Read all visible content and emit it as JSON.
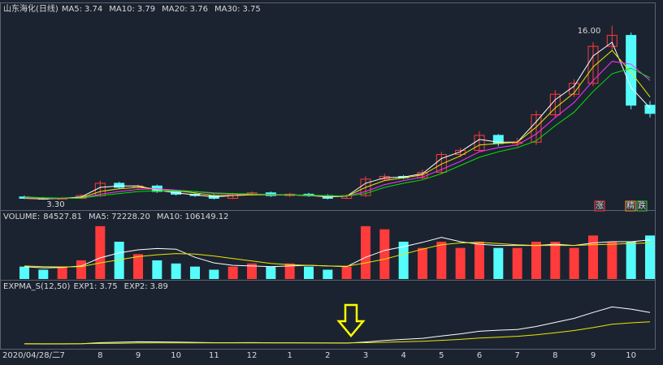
{
  "chart_data": [
    {
      "type": "candlestick",
      "title": "山东海化(日线)",
      "categories": [
        "2020/04/28/二",
        null,
        "7",
        null,
        "8",
        null,
        "9",
        null,
        "10",
        null,
        "11",
        null,
        "12",
        null,
        "1",
        null,
        "2",
        null,
        "3",
        null,
        "4",
        null,
        "5",
        null,
        "6",
        null,
        "7",
        null,
        "8",
        null,
        "9",
        null,
        "10",
        null
      ],
      "open": [
        3.5,
        3.4,
        3.35,
        3.4,
        3.6,
        4.5,
        4.2,
        4.3,
        3.9,
        3.7,
        3.6,
        3.4,
        3.7,
        3.8,
        3.6,
        3.7,
        3.6,
        3.4,
        3.6,
        4.8,
        5.0,
        4.9,
        5.3,
        6.6,
        6.9,
        8.0,
        7.4,
        7.5,
        9.5,
        11.0,
        11.8,
        14.5,
        15.3,
        10.2
      ],
      "high": [
        3.6,
        3.5,
        3.5,
        3.7,
        4.7,
        4.6,
        4.4,
        4.4,
        4.0,
        3.8,
        3.7,
        3.8,
        3.9,
        3.9,
        3.8,
        3.8,
        3.7,
        3.7,
        5.0,
        5.2,
        5.1,
        5.5,
        6.8,
        7.1,
        8.3,
        8.1,
        7.8,
        9.8,
        11.3,
        12.1,
        14.8,
        16.0,
        15.5,
        10.5
      ],
      "low": [
        3.35,
        3.3,
        3.32,
        3.35,
        3.5,
        4.1,
        4.1,
        3.8,
        3.6,
        3.5,
        3.32,
        3.35,
        3.6,
        3.5,
        3.5,
        3.5,
        3.32,
        3.35,
        3.5,
        4.7,
        4.8,
        4.8,
        5.2,
        6.4,
        6.8,
        7.2,
        7.2,
        7.3,
        9.3,
        10.8,
        11.6,
        14.2,
        9.9,
        9.3
      ],
      "close": [
        3.4,
        3.35,
        3.4,
        3.6,
        4.5,
        4.2,
        4.3,
        3.9,
        3.7,
        3.6,
        3.4,
        3.7,
        3.8,
        3.6,
        3.7,
        3.6,
        3.4,
        3.6,
        4.8,
        5.0,
        4.9,
        5.3,
        6.6,
        6.9,
        8.0,
        7.4,
        7.5,
        9.5,
        11.0,
        11.8,
        14.5,
        15.3,
        10.2,
        9.6
      ],
      "up_color": "#ff3b3b",
      "down_color": "#54fcfc",
      "ylim": [
        2.6,
        16.7
      ],
      "series": [
        {
          "name": "MA5:",
          "value": 3.74,
          "color": "#ffffff",
          "values": [
            3.4,
            3.35,
            3.4,
            3.5,
            4.2,
            4.3,
            4.3,
            4.0,
            3.8,
            3.65,
            3.5,
            3.6,
            3.7,
            3.65,
            3.65,
            3.6,
            3.5,
            3.55,
            4.5,
            4.9,
            4.95,
            5.2,
            6.3,
            6.8,
            7.7,
            7.5,
            7.5,
            9.0,
            10.6,
            11.6,
            13.8,
            14.8,
            11.5,
            10.0
          ]
        },
        {
          "name": "MA10:",
          "value": 3.79,
          "color": "#e8e800",
          "values": [
            3.4,
            3.38,
            3.4,
            3.45,
            3.9,
            4.1,
            4.2,
            4.1,
            3.95,
            3.8,
            3.6,
            3.6,
            3.65,
            3.65,
            3.65,
            3.6,
            3.55,
            3.55,
            4.2,
            4.7,
            4.9,
            5.1,
            5.9,
            6.5,
            7.3,
            7.4,
            7.5,
            8.6,
            10.0,
            11.1,
            13.0,
            14.2,
            12.6,
            10.8
          ]
        },
        {
          "name": "MA20:",
          "value": 3.76,
          "color": "#ff33ff",
          "values": [
            3.45,
            3.42,
            3.4,
            3.42,
            3.7,
            3.9,
            4.05,
            4.1,
            4.0,
            3.9,
            3.75,
            3.7,
            3.7,
            3.65,
            3.65,
            3.62,
            3.58,
            3.56,
            3.9,
            4.4,
            4.7,
            4.95,
            5.5,
            6.1,
            6.8,
            7.1,
            7.3,
            8.1,
            9.3,
            10.4,
            12.0,
            13.4,
            13.2,
            12.0
          ]
        },
        {
          "name": "MA30:",
          "value": 3.75,
          "color": "#00e600",
          "values": [
            3.5,
            3.45,
            3.42,
            3.42,
            3.6,
            3.75,
            3.9,
            3.95,
            3.95,
            3.9,
            3.8,
            3.75,
            3.72,
            3.68,
            3.66,
            3.63,
            3.6,
            3.57,
            3.75,
            4.2,
            4.5,
            4.75,
            5.2,
            5.8,
            6.4,
            6.8,
            7.1,
            7.6,
            8.7,
            9.7,
            11.2,
            12.5,
            12.9,
            12.2
          ]
        }
      ],
      "annotations": [
        {
          "value": 16,
          "label": "16.00"
        },
        {
          "value": 3.3,
          "label": "3.30"
        }
      ],
      "badges": [
        "涨",
        "精",
        "跌"
      ]
    },
    {
      "type": "bar",
      "title": "VOLUME:",
      "value": 84527.81,
      "values": [
        40000,
        30000,
        40000,
        60000,
        170000,
        120000,
        80000,
        60000,
        50000,
        40000,
        30000,
        40000,
        50000,
        40000,
        50000,
        40000,
        30000,
        40000,
        170000,
        160000,
        120000,
        100000,
        120000,
        100000,
        120000,
        100000,
        100000,
        120000,
        120000,
        100000,
        140000,
        120000,
        120000,
        140000
      ],
      "ylim": [
        0,
        180000
      ],
      "series": [
        {
          "name": "MA5:",
          "value": {
            "value": 72228.2,
            "label": "72228.20"
          },
          "color": "#ffffff",
          "values": [
            40000,
            36000,
            37000,
            42000,
            68000,
            84000,
            94000,
            98000,
            96000,
            70000,
            52000,
            44000,
            42000,
            40000,
            42000,
            44000,
            42000,
            40000,
            70000,
            92000,
            104000,
            118000,
            134000,
            120000,
            112000,
            108000,
            108000,
            108000,
            112000,
            108000,
            116000,
            120000,
            120000,
            126000
          ]
        },
        {
          "name": "MA10:",
          "value": 106149.12,
          "color": "#e8e800",
          "values": [
            42000,
            40000,
            39000,
            40000,
            52000,
            62000,
            72000,
            78000,
            82000,
            80000,
            74000,
            66000,
            58000,
            50000,
            46000,
            44000,
            42000,
            41000,
            52000,
            64000,
            80000,
            96000,
            110000,
            116000,
            118000,
            114000,
            110000,
            108000,
            108000,
            108000,
            110000,
            112000,
            114000,
            116000
          ]
        }
      ]
    },
    {
      "type": "line",
      "title": "EXPMA_S(12,50)",
      "ylim": [
        2.5,
        17
      ],
      "series": [
        {
          "name": "EXP1:",
          "value": 3.75,
          "color": "#ffffff",
          "values": [
            3.4,
            3.38,
            3.38,
            3.42,
            3.7,
            3.85,
            3.95,
            3.93,
            3.88,
            3.8,
            3.7,
            3.7,
            3.72,
            3.69,
            3.69,
            3.67,
            3.62,
            3.6,
            3.9,
            4.3,
            4.6,
            4.9,
            5.5,
            6.1,
            6.8,
            7.1,
            7.3,
            8.1,
            9.2,
            10.3,
            11.9,
            13.4,
            12.8,
            11.9
          ]
        },
        {
          "name": "EXP2:",
          "value": 3.89,
          "color": "#e8e800",
          "values": [
            3.45,
            3.44,
            3.43,
            3.44,
            3.5,
            3.56,
            3.62,
            3.65,
            3.67,
            3.67,
            3.66,
            3.66,
            3.66,
            3.66,
            3.66,
            3.66,
            3.65,
            3.64,
            3.7,
            3.82,
            3.95,
            4.1,
            4.35,
            4.62,
            4.95,
            5.2,
            5.45,
            5.85,
            6.4,
            7.0,
            7.8,
            8.7,
            9.1,
            9.35
          ]
        }
      ]
    }
  ]
}
